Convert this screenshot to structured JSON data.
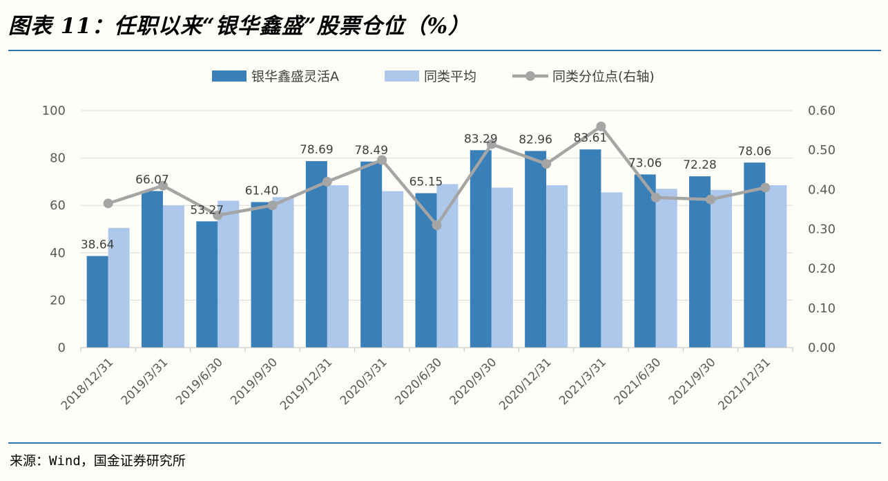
{
  "title": "图表 11：任职以来“银华鑫盛”股票仓位（%）",
  "source": "来源：Wind，国金证券研究所",
  "chart_data": {
    "type": "bar",
    "categories": [
      "2018/12/31",
      "2019/3/31",
      "2019/6/30",
      "2019/9/30",
      "2019/12/31",
      "2020/3/31",
      "2020/6/30",
      "2020/9/30",
      "2020/12/31",
      "2021/3/31",
      "2021/6/30",
      "2021/9/30",
      "2021/12/31"
    ],
    "series": [
      {
        "name": "银华鑫盛灵活A",
        "type": "bar",
        "axis": "left",
        "color": "#3a80b8",
        "values": [
          38.64,
          66.07,
          53.27,
          61.4,
          78.69,
          78.49,
          65.15,
          83.29,
          82.96,
          83.61,
          73.06,
          72.28,
          78.06
        ],
        "labels": [
          "38.64",
          "66.07",
          "53.27",
          "61.40",
          "78.69",
          "78.49",
          "65.15",
          "83.29",
          "82.96",
          "83.61",
          "73.06",
          "72.28",
          "78.06"
        ]
      },
      {
        "name": "同类平均",
        "type": "bar",
        "axis": "left",
        "color": "#aec8ec",
        "values": [
          50.5,
          60.0,
          62.0,
          63.5,
          68.5,
          66.0,
          69.0,
          67.5,
          68.5,
          65.5,
          67.0,
          66.5,
          68.5
        ]
      },
      {
        "name": "同类分位点(右轴)",
        "type": "line",
        "axis": "right",
        "color": "#a5a5a5",
        "values": [
          0.365,
          0.41,
          0.335,
          0.36,
          0.42,
          0.475,
          0.31,
          0.515,
          0.465,
          0.56,
          0.38,
          0.375,
          0.405
        ]
      }
    ],
    "yleft": {
      "min": 0,
      "max": 100,
      "ticks": [
        "0",
        "20",
        "40",
        "60",
        "80",
        "100"
      ]
    },
    "yright": {
      "min": 0,
      "max": 0.6,
      "ticks": [
        "0.00",
        "0.10",
        "0.20",
        "0.30",
        "0.40",
        "0.50",
        "0.60"
      ]
    },
    "grid": true,
    "legend": "top-center"
  }
}
